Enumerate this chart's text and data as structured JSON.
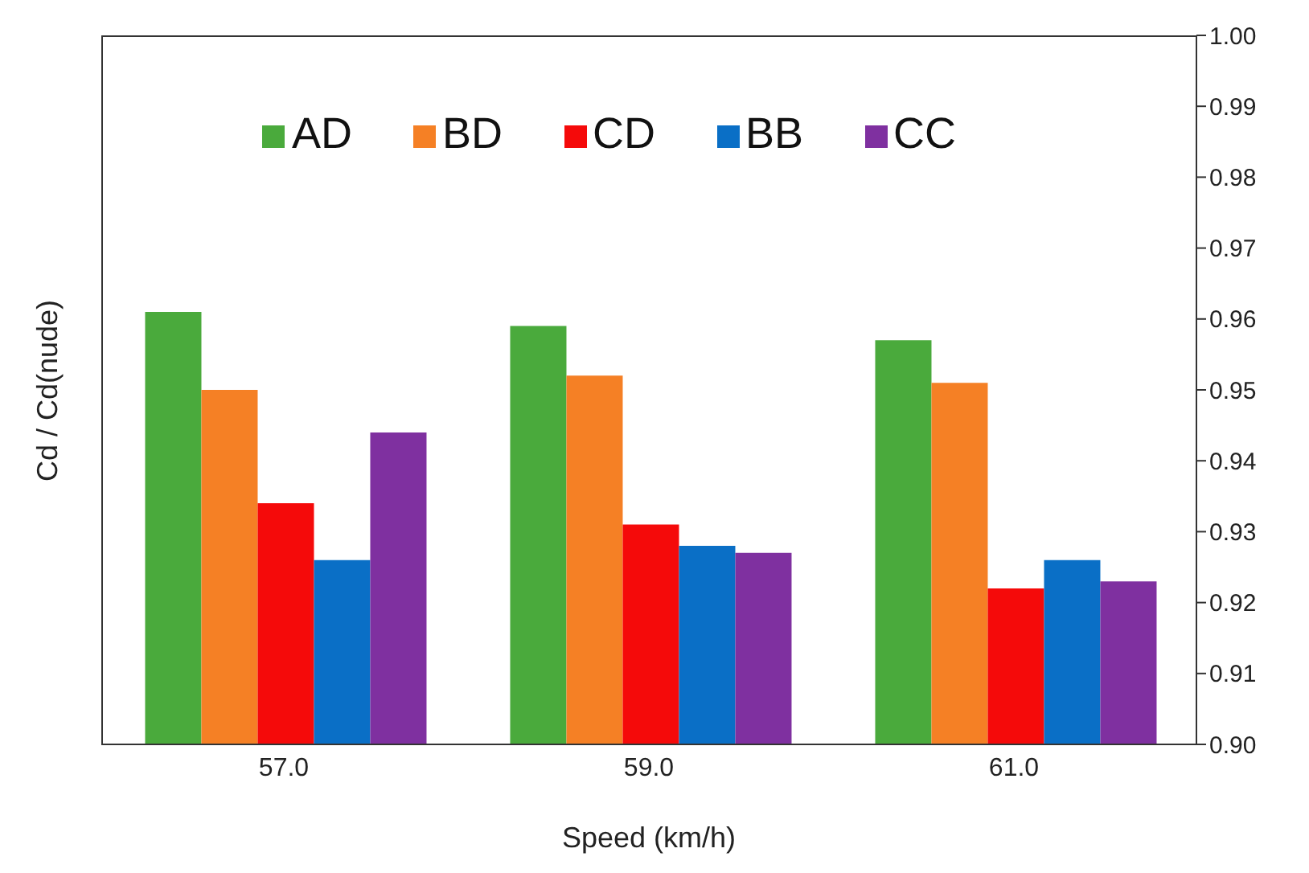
{
  "chart_data": {
    "type": "bar",
    "xlabel": "Speed (km/h)",
    "ylabel": "Cd / Cd(nude)",
    "categories": [
      "57.0",
      "59.0",
      "61.0"
    ],
    "series": [
      {
        "name": "AD",
        "color": "#4aaa3c",
        "values": [
          0.961,
          0.959,
          0.957
        ]
      },
      {
        "name": "BD",
        "color": "#f58025",
        "values": [
          0.95,
          0.952,
          0.951
        ]
      },
      {
        "name": "CD",
        "color": "#f50a0a",
        "values": [
          0.934,
          0.931,
          0.922
        ]
      },
      {
        "name": "BB",
        "color": "#0a6fc6",
        "values": [
          0.926,
          0.928,
          0.926
        ]
      },
      {
        "name": "CC",
        "color": "#7f30a0",
        "values": [
          0.944,
          0.927,
          0.923
        ]
      }
    ],
    "ylim": [
      0.9,
      1.0
    ],
    "yticks": [
      {
        "value": 0.9,
        "label": "0.90"
      },
      0.91,
      0.92,
      0.93,
      0.94,
      0.95,
      0.96,
      0.97,
      0.98,
      0.99,
      {
        "value": 1.0,
        "label": "1.00"
      }
    ],
    "grid": false,
    "legend": "top"
  }
}
